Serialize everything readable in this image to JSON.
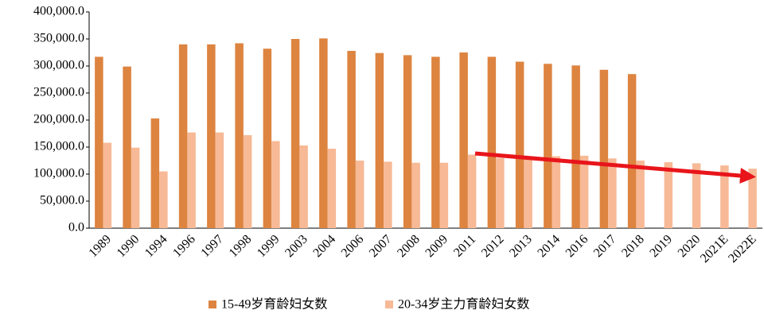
{
  "chart_data": {
    "type": "bar",
    "categories": [
      "1989",
      "1990",
      "1994",
      "1996",
      "1997",
      "1998",
      "1999",
      "2003",
      "2004",
      "2006",
      "2007",
      "2008",
      "2009",
      "2011",
      "2012",
      "2013",
      "2014",
      "2016",
      "2017",
      "2018",
      "2019",
      "2020",
      "2021E",
      "2022E"
    ],
    "series": [
      {
        "name": "15-49岁育龄妇女数",
        "color": "#dd8440",
        "values": [
          317000,
          299000,
          203000,
          340000,
          340000,
          342000,
          332000,
          350000,
          351000,
          328000,
          324000,
          320000,
          317000,
          325000,
          317000,
          308000,
          304000,
          301000,
          293000,
          285000,
          null,
          null,
          null,
          null
        ]
      },
      {
        "name": "20-34岁主力育龄妇女数",
        "color": "#f7b996",
        "values": [
          158000,
          149000,
          105000,
          177000,
          177000,
          172000,
          161000,
          153000,
          147000,
          125000,
          123000,
          121000,
          121000,
          136000,
          130000,
          128000,
          133000,
          134000,
          129000,
          125000,
          122000,
          120000,
          116000,
          110000
        ]
      }
    ],
    "ylim": [
      0,
      400000
    ],
    "yticks": [
      {
        "value": 0,
        "label": "0.0"
      },
      {
        "value": 50000,
        "label": "50,000.0"
      },
      {
        "value": 100000,
        "label": "100,000.0"
      },
      {
        "value": 150000,
        "label": "150,000.0"
      },
      {
        "value": 200000,
        "label": "200,000.0"
      },
      {
        "value": 250000,
        "label": "250,000.0"
      },
      {
        "value": 300000,
        "label": "300,000.0"
      },
      {
        "value": 350000,
        "label": "350,000.0"
      },
      {
        "value": 400000,
        "label": "400,000.0"
      }
    ]
  }
}
